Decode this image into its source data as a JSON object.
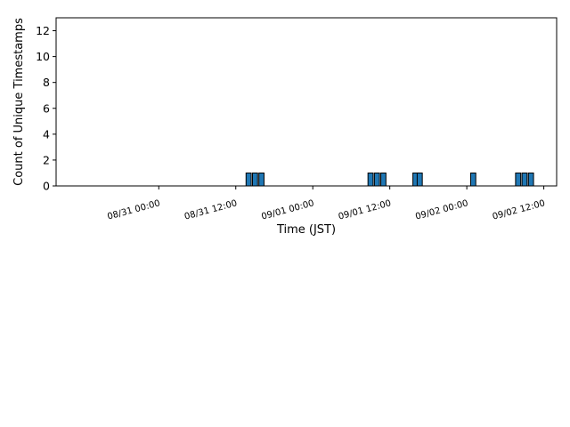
{
  "chart_data": {
    "type": "bar",
    "xlabel": "Time (JST)",
    "ylabel": "Count of Unique Timestamps",
    "ylim": [
      0,
      13
    ],
    "xlim": [
      "2025-08-30 08:00",
      "2025-09-02 14:00"
    ],
    "bar_width_hours": 0.8,
    "x_ticks": [
      "08/31 00:00",
      "08/31 12:00",
      "09/01 00:00",
      "09/01 12:00",
      "09/02 00:00",
      "09/02 12:00"
    ],
    "y_ticks": [
      "0",
      "2",
      "4",
      "6",
      "8",
      "10",
      "12"
    ],
    "bars": [
      {
        "x": "2025-08-31 14:00",
        "value": 1
      },
      {
        "x": "2025-08-31 15:00",
        "value": 1
      },
      {
        "x": "2025-08-31 16:00",
        "value": 1
      },
      {
        "x": "2025-09-01 09:00",
        "value": 1
      },
      {
        "x": "2025-09-01 10:00",
        "value": 1
      },
      {
        "x": "2025-09-01 11:00",
        "value": 1
      },
      {
        "x": "2025-09-01 16:00",
        "value": 1
      },
      {
        "x": "2025-09-01 16:40",
        "value": 1
      },
      {
        "x": "2025-09-02 01:00",
        "value": 1
      },
      {
        "x": "2025-09-02 08:00",
        "value": 1
      },
      {
        "x": "2025-09-02 09:00",
        "value": 1
      },
      {
        "x": "2025-09-02 10:00",
        "value": 1
      }
    ],
    "bar_color": "#1f77b4",
    "edge_color": "#000000",
    "grid": false,
    "legend": "none"
  }
}
